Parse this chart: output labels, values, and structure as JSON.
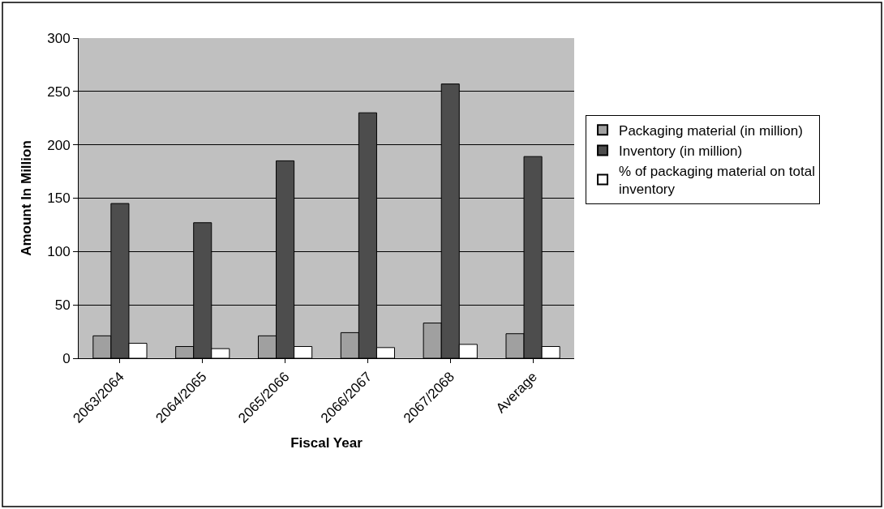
{
  "chart_data": {
    "type": "bar",
    "xlabel": "Fiscal Year",
    "ylabel": "Amount In Million",
    "categories": [
      "2063/2064",
      "2064/2065",
      "2065/2066",
      "2066/2067",
      "2067/2068",
      "Average"
    ],
    "series": [
      {
        "name": "Packaging material (in million)",
        "color": "#a0a0a0",
        "values": [
          21,
          11,
          21,
          24,
          33,
          23
        ]
      },
      {
        "name": "Inventory (in million)",
        "color": "#4d4d4d",
        "values": [
          145,
          127,
          185,
          230,
          257,
          189
        ]
      },
      {
        "name": "% of packaging material on total inventory",
        "color": "#ffffff",
        "values": [
          14,
          9,
          11,
          10,
          13,
          11
        ]
      }
    ],
    "ylim": [
      0,
      300
    ],
    "yticks": [
      0,
      50,
      100,
      150,
      200,
      250,
      300
    ],
    "grid": "y",
    "legend": "right"
  }
}
